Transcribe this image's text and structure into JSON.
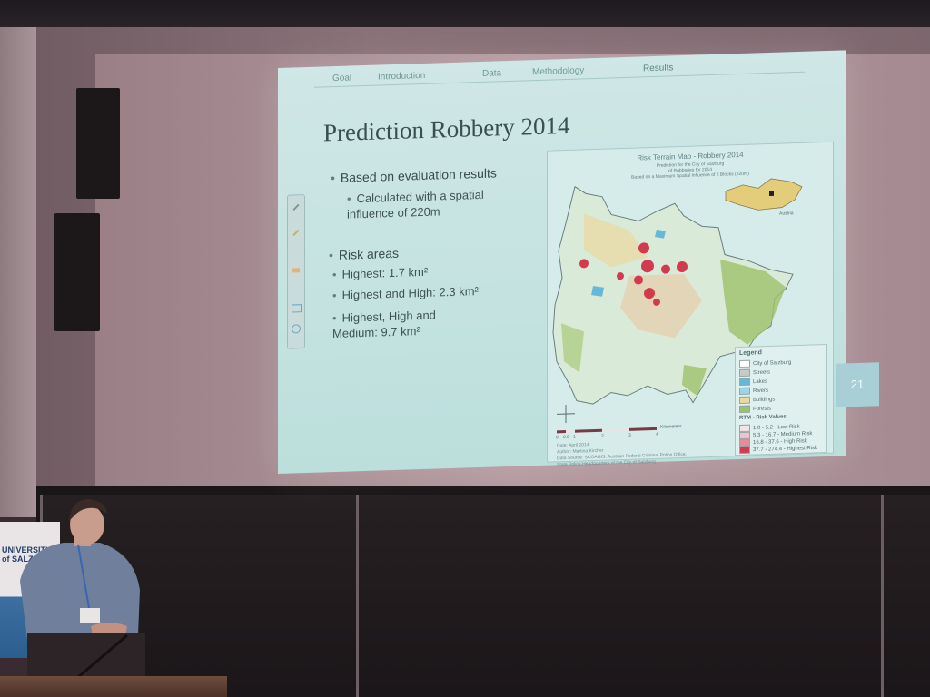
{
  "slide": {
    "nav_items": [
      "Goal",
      "Introduction",
      "Data",
      "Methodology",
      "Results"
    ],
    "title": "Prediction Robbery 2014",
    "bullets": [
      {
        "text": "Based on evaluation results",
        "sub": [
          "Calculated with a spatial influence of 220m"
        ]
      },
      {
        "text": "Risk areas",
        "sub": [
          "Highest: 1.7 km²",
          "Highest and High: 2.3 km²",
          "Highest, High and Medium: 9.7 km²"
        ]
      }
    ],
    "page_number": "21"
  },
  "map": {
    "title": "Risk Terrain Map - Robbery 2014",
    "subtitle_lines": [
      "Prediction for the City of Salzburg",
      "of Robberies for 2014",
      "Based on a Maximum Spatial Influence of 2 Blocks (220m)"
    ],
    "inset_label": "Austria",
    "scale_label": "Kilometers",
    "scale_ticks": [
      "0",
      "0.5",
      "1",
      "2",
      "3",
      "4"
    ],
    "legend": {
      "title": "Legend",
      "items": [
        {
          "label": "City of Salzburg",
          "color": "#ffffff"
        },
        {
          "label": "Streets",
          "color": "#c9c9c9"
        },
        {
          "label": "Lakes",
          "color": "#66b8d9"
        },
        {
          "label": "Rivers",
          "color": "#9fd3e6"
        },
        {
          "label": "Buildings",
          "color": "#e8d9a6"
        },
        {
          "label": "Forests",
          "color": "#9cc26a"
        }
      ],
      "rtm_title": "RTM - Risk Values",
      "rtm_items": [
        {
          "label": "1.0 - 5.2 - Low Risk",
          "color": "#f4e3e6"
        },
        {
          "label": "5.3 - 16.7 - Medium Risk",
          "color": "#eec3cb"
        },
        {
          "label": "16.8 - 37.6 - High Risk",
          "color": "#e78c9a"
        },
        {
          "label": "37.7 - 274.4 - Highest Risk",
          "color": "#d33a4f"
        }
      ]
    },
    "credits": [
      "Date: April 2014",
      "Author: Martina Kircher",
      "Data Source: SCOAGIS, Austrian Federal Criminal Police Office,",
      "State Police Headquarters of the City of Salzburg"
    ]
  },
  "banner": {
    "org_line1": "UNIVERSITY",
    "org_line2": "of SALZBURG"
  },
  "colors": {
    "slide_bg": "#c6e3e1",
    "title": "#3a4f52",
    "risk_high": "#d33a4f",
    "forest": "#9cc26a"
  }
}
